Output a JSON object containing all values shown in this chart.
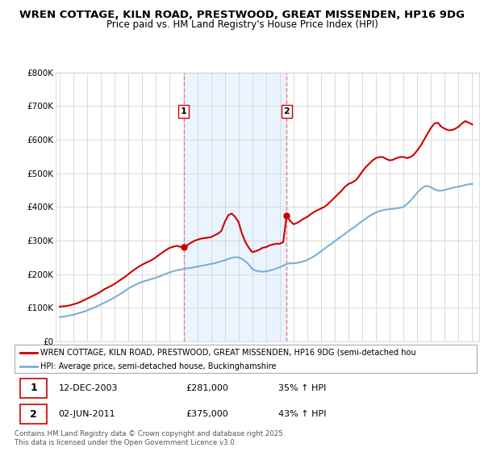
{
  "title1": "WREN COTTAGE, KILN ROAD, PRESTWOOD, GREAT MISSENDEN, HP16 9DG",
  "title2": "Price paid vs. HM Land Registry's House Price Index (HPI)",
  "legend_line1": "WREN COTTAGE, KILN ROAD, PRESTWOOD, GREAT MISSENDEN, HP16 9DG (semi-detached hou",
  "legend_line2": "HPI: Average price, semi-detached house, Buckinghamshire",
  "footer": "Contains HM Land Registry data © Crown copyright and database right 2025.\nThis data is licensed under the Open Government Licence v3.0.",
  "annotation1_date": "12-DEC-2003",
  "annotation1_price": "£281,000",
  "annotation1_hpi": "35% ↑ HPI",
  "annotation2_date": "02-JUN-2011",
  "annotation2_price": "£375,000",
  "annotation2_hpi": "43% ↑ HPI",
  "red_color": "#cc0000",
  "blue_color": "#7ab0d4",
  "vline_color": "#e88080",
  "shade_color": "#ddeeff",
  "background_color": "#ffffff",
  "grid_color": "#cccccc",
  "sale1_year": 2004.0,
  "sale1_value": 281000,
  "sale2_year": 2011.5,
  "sale2_value": 375000,
  "ylim_max": 800000,
  "xlim_min": 1994.7,
  "xlim_max": 2025.5,
  "red_x": [
    1995.0,
    1995.25,
    1995.5,
    1995.75,
    1996.0,
    1996.25,
    1996.5,
    1996.75,
    1997.0,
    1997.25,
    1997.5,
    1997.75,
    1998.0,
    1998.25,
    1998.5,
    1998.75,
    1999.0,
    1999.25,
    1999.5,
    1999.75,
    2000.0,
    2000.25,
    2000.5,
    2000.75,
    2001.0,
    2001.25,
    2001.5,
    2001.75,
    2002.0,
    2002.25,
    2002.5,
    2002.75,
    2003.0,
    2003.25,
    2003.5,
    2003.75,
    2004.0,
    2004.25,
    2004.5,
    2004.75,
    2005.0,
    2005.25,
    2005.5,
    2005.75,
    2006.0,
    2006.25,
    2006.5,
    2006.75,
    2007.0,
    2007.25,
    2007.5,
    2007.75,
    2008.0,
    2008.25,
    2008.5,
    2008.75,
    2009.0,
    2009.25,
    2009.5,
    2009.75,
    2010.0,
    2010.25,
    2010.5,
    2010.75,
    2011.0,
    2011.25,
    2011.5,
    2011.75,
    2012.0,
    2012.25,
    2012.5,
    2012.75,
    2013.0,
    2013.25,
    2013.5,
    2013.75,
    2014.0,
    2014.25,
    2014.5,
    2014.75,
    2015.0,
    2015.25,
    2015.5,
    2015.75,
    2016.0,
    2016.25,
    2016.5,
    2016.75,
    2017.0,
    2017.25,
    2017.5,
    2017.75,
    2018.0,
    2018.25,
    2018.5,
    2018.75,
    2019.0,
    2019.25,
    2019.5,
    2019.75,
    2020.0,
    2020.25,
    2020.5,
    2020.75,
    2021.0,
    2021.25,
    2021.5,
    2021.75,
    2022.0,
    2022.25,
    2022.5,
    2022.75,
    2023.0,
    2023.25,
    2023.5,
    2023.75,
    2024.0,
    2024.25,
    2024.5,
    2024.75,
    2025.0
  ],
  "red_y": [
    103000,
    104000,
    105000,
    107000,
    110000,
    113000,
    117000,
    122000,
    127000,
    132000,
    137000,
    142000,
    148000,
    155000,
    160000,
    165000,
    171000,
    178000,
    185000,
    192000,
    200000,
    208000,
    215000,
    222000,
    228000,
    233000,
    238000,
    243000,
    250000,
    258000,
    265000,
    272000,
    278000,
    281000,
    284000,
    281000,
    281000,
    285000,
    292000,
    298000,
    302000,
    305000,
    307000,
    308000,
    310000,
    315000,
    320000,
    328000,
    355000,
    375000,
    380000,
    370000,
    355000,
    320000,
    295000,
    278000,
    265000,
    268000,
    272000,
    278000,
    280000,
    285000,
    288000,
    290000,
    290000,
    295000,
    375000,
    358000,
    348000,
    352000,
    358000,
    365000,
    370000,
    378000,
    385000,
    390000,
    395000,
    400000,
    408000,
    418000,
    428000,
    438000,
    448000,
    460000,
    468000,
    472000,
    478000,
    490000,
    505000,
    518000,
    528000,
    538000,
    545000,
    548000,
    548000,
    542000,
    538000,
    540000,
    545000,
    548000,
    548000,
    545000,
    548000,
    555000,
    568000,
    582000,
    600000,
    618000,
    635000,
    648000,
    650000,
    638000,
    632000,
    628000,
    628000,
    632000,
    638000,
    648000,
    655000,
    650000,
    645000
  ],
  "blue_x": [
    1995.0,
    1995.25,
    1995.5,
    1995.75,
    1996.0,
    1996.25,
    1996.5,
    1996.75,
    1997.0,
    1997.25,
    1997.5,
    1997.75,
    1998.0,
    1998.25,
    1998.5,
    1998.75,
    1999.0,
    1999.25,
    1999.5,
    1999.75,
    2000.0,
    2000.25,
    2000.5,
    2000.75,
    2001.0,
    2001.25,
    2001.5,
    2001.75,
    2002.0,
    2002.25,
    2002.5,
    2002.75,
    2003.0,
    2003.25,
    2003.5,
    2003.75,
    2004.0,
    2004.25,
    2004.5,
    2004.75,
    2005.0,
    2005.25,
    2005.5,
    2005.75,
    2006.0,
    2006.25,
    2006.5,
    2006.75,
    2007.0,
    2007.25,
    2007.5,
    2007.75,
    2008.0,
    2008.25,
    2008.5,
    2008.75,
    2009.0,
    2009.25,
    2009.5,
    2009.75,
    2010.0,
    2010.25,
    2010.5,
    2010.75,
    2011.0,
    2011.25,
    2011.5,
    2011.75,
    2012.0,
    2012.25,
    2012.5,
    2012.75,
    2013.0,
    2013.25,
    2013.5,
    2013.75,
    2014.0,
    2014.25,
    2014.5,
    2014.75,
    2015.0,
    2015.25,
    2015.5,
    2015.75,
    2016.0,
    2016.25,
    2016.5,
    2016.75,
    2017.0,
    2017.25,
    2017.5,
    2017.75,
    2018.0,
    2018.25,
    2018.5,
    2018.75,
    2019.0,
    2019.25,
    2019.5,
    2019.75,
    2020.0,
    2020.25,
    2020.5,
    2020.75,
    2021.0,
    2021.25,
    2021.5,
    2021.75,
    2022.0,
    2022.25,
    2022.5,
    2022.75,
    2023.0,
    2023.25,
    2023.5,
    2023.75,
    2024.0,
    2024.25,
    2024.5,
    2024.75,
    2025.0
  ],
  "blue_y": [
    72000,
    73000,
    75000,
    77000,
    79000,
    82000,
    85000,
    88000,
    92000,
    96000,
    100000,
    105000,
    110000,
    115000,
    120000,
    125000,
    131000,
    137000,
    143000,
    150000,
    157000,
    163000,
    168000,
    173000,
    177000,
    180000,
    183000,
    186000,
    189000,
    193000,
    197000,
    201000,
    205000,
    208000,
    211000,
    213000,
    215000,
    217000,
    218000,
    220000,
    222000,
    224000,
    226000,
    228000,
    230000,
    232000,
    235000,
    238000,
    241000,
    245000,
    248000,
    250000,
    250000,
    245000,
    238000,
    228000,
    215000,
    210000,
    208000,
    207000,
    208000,
    210000,
    213000,
    217000,
    220000,
    225000,
    230000,
    232000,
    232000,
    233000,
    235000,
    238000,
    242000,
    247000,
    253000,
    260000,
    268000,
    275000,
    283000,
    290000,
    298000,
    305000,
    313000,
    320000,
    328000,
    335000,
    342000,
    350000,
    358000,
    365000,
    372000,
    378000,
    383000,
    387000,
    390000,
    392000,
    393000,
    394000,
    395000,
    397000,
    400000,
    408000,
    418000,
    430000,
    442000,
    453000,
    460000,
    462000,
    458000,
    452000,
    448000,
    448000,
    450000,
    453000,
    456000,
    458000,
    460000,
    462000,
    465000,
    467000,
    468000
  ]
}
